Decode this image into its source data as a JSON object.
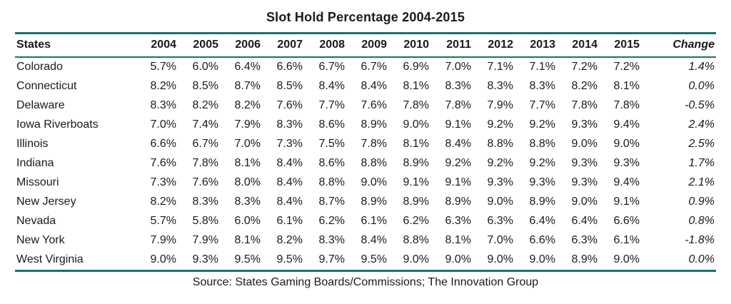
{
  "chart_data": {
    "type": "table",
    "title": "Slot Hold Percentage 2004-2015",
    "state_header": "States",
    "year_headers": [
      "2004",
      "2005",
      "2006",
      "2007",
      "2008",
      "2009",
      "2010",
      "2011",
      "2012",
      "2013",
      "2014",
      "2015"
    ],
    "change_header": "Change",
    "rows": [
      {
        "state": "Colorado",
        "values": [
          "5.7%",
          "6.0%",
          "6.4%",
          "6.6%",
          "6.7%",
          "6.7%",
          "6.9%",
          "7.0%",
          "7.1%",
          "7.1%",
          "7.2%",
          "7.2%"
        ],
        "change": "1.4%"
      },
      {
        "state": "Connecticut",
        "values": [
          "8.2%",
          "8.5%",
          "8.7%",
          "8.5%",
          "8.4%",
          "8.4%",
          "8.1%",
          "8.3%",
          "8.3%",
          "8.3%",
          "8.2%",
          "8.1%"
        ],
        "change": "0.0%"
      },
      {
        "state": "Delaware",
        "values": [
          "8.3%",
          "8.2%",
          "8.2%",
          "7.6%",
          "7.7%",
          "7.6%",
          "7.8%",
          "7.8%",
          "7.9%",
          "7.7%",
          "7.8%",
          "7.8%"
        ],
        "change": "-0.5%"
      },
      {
        "state": "Iowa Riverboats",
        "values": [
          "7.0%",
          "7.4%",
          "7.9%",
          "8.3%",
          "8.6%",
          "8.9%",
          "9.0%",
          "9.1%",
          "9.2%",
          "9.2%",
          "9.3%",
          "9.4%"
        ],
        "change": "2.4%"
      },
      {
        "state": "Illinois",
        "values": [
          "6.6%",
          "6.7%",
          "7.0%",
          "7.3%",
          "7.5%",
          "7.8%",
          "8.1%",
          "8.4%",
          "8.8%",
          "8.8%",
          "9.0%",
          "9.0%"
        ],
        "change": "2.5%"
      },
      {
        "state": "Indiana",
        "values": [
          "7.6%",
          "7.8%",
          "8.1%",
          "8.4%",
          "8.6%",
          "8.8%",
          "8.9%",
          "9.2%",
          "9.2%",
          "9.2%",
          "9.3%",
          "9.3%"
        ],
        "change": "1.7%"
      },
      {
        "state": "Missouri",
        "values": [
          "7.3%",
          "7.6%",
          "8.0%",
          "8.4%",
          "8.8%",
          "9.0%",
          "9.1%",
          "9.1%",
          "9.3%",
          "9.3%",
          "9.3%",
          "9.4%"
        ],
        "change": "2.1%"
      },
      {
        "state": "New Jersey",
        "values": [
          "8.2%",
          "8.3%",
          "8.3%",
          "8.4%",
          "8.7%",
          "8.9%",
          "8.9%",
          "8.9%",
          "9.0%",
          "8.9%",
          "9.0%",
          "9.1%"
        ],
        "change": "0.9%"
      },
      {
        "state": "Nevada",
        "values": [
          "5.7%",
          "5.8%",
          "6.0%",
          "6.1%",
          "6.2%",
          "6.1%",
          "6.2%",
          "6.3%",
          "6.3%",
          "6.4%",
          "6.4%",
          "6.6%"
        ],
        "change": "0.8%"
      },
      {
        "state": "New York",
        "values": [
          "7.9%",
          "7.9%",
          "8.1%",
          "8.2%",
          "8.3%",
          "8.4%",
          "8.8%",
          "8.1%",
          "7.0%",
          "6.6%",
          "6.3%",
          "6.1%"
        ],
        "change": "-1.8%"
      },
      {
        "state": "West Virginia",
        "values": [
          "9.0%",
          "9.3%",
          "9.5%",
          "9.5%",
          "9.7%",
          "9.5%",
          "9.0%",
          "9.0%",
          "9.0%",
          "9.0%",
          "8.9%",
          "9.0%"
        ],
        "change": "0.0%"
      }
    ],
    "source": "Source: States Gaming Boards/Commissions; The Innovation Group"
  },
  "colors": {
    "rule_accent": "#17736b",
    "text": "#1a1a1a",
    "background": "#ffffff"
  }
}
